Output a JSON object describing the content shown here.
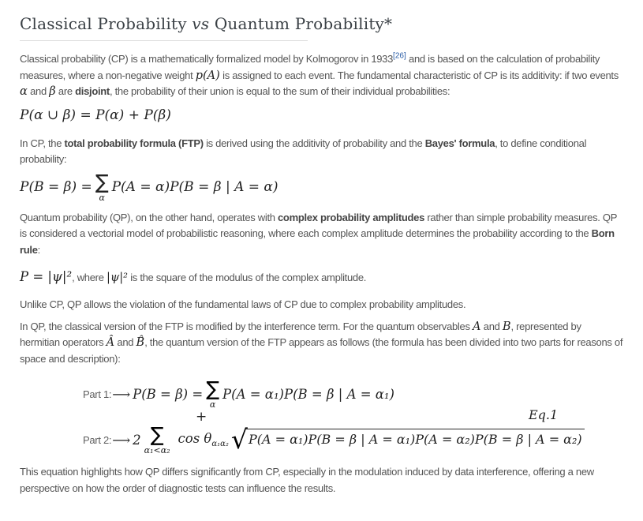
{
  "title": {
    "pre": "Classical Probability ",
    "vs": "vs",
    "post": " Quantum Probability*"
  },
  "paragraphs": {
    "p1": [
      {
        "t": "Classical probability (CP) is a mathematically formalized model by Kolmogorov in 1933",
        "s": "plain"
      },
      {
        "t": "[26]",
        "s": "suplink",
        "name": "citation-link-26",
        "i": true
      },
      {
        "t": " and is based on the calculation of probability measures, where a non-negative weight ",
        "s": "plain"
      },
      {
        "t": "p(A)",
        "s": "math"
      },
      {
        "t": " is assigned to each event. The fundamental characteristic of CP is its additivity: if two events ",
        "s": "plain"
      },
      {
        "t": "α",
        "s": "math"
      },
      {
        "t": " and ",
        "s": "plain"
      },
      {
        "t": "β",
        "s": "math"
      },
      {
        "t": " are ",
        "s": "plain"
      },
      {
        "t": "disjoint",
        "s": "bold"
      },
      {
        "t": ", the probability of their union is equal to the sum of their individual probabilities:",
        "s": "plain"
      }
    ],
    "p2": [
      {
        "t": "In CP, the ",
        "s": "plain"
      },
      {
        "t": "total probability formula (FTP)",
        "s": "bold"
      },
      {
        "t": " is derived using the additivity of probability and the ",
        "s": "plain"
      },
      {
        "t": "Bayes' formula",
        "s": "bold"
      },
      {
        "t": ", to define conditional probability:",
        "s": "plain"
      }
    ],
    "p3": [
      {
        "t": "Quantum probability (QP), on the other hand, operates with ",
        "s": "plain"
      },
      {
        "t": "complex probability amplitudes",
        "s": "bold"
      },
      {
        "t": " rather than simple probability measures. QP is considered a vectorial model of probabilistic reasoning, where each complex amplitude determines the probability according to the ",
        "s": "plain"
      },
      {
        "t": "Born rule",
        "s": "bold"
      },
      {
        "t": ":",
        "s": "plain"
      }
    ],
    "born": [
      {
        "t": "P = |ψ|²",
        "s": "math-lg"
      },
      {
        "t": ", where ",
        "s": "plain"
      },
      {
        "t": "|ψ|²",
        "s": "math"
      },
      {
        "t": " is the square of the modulus of the complex amplitude.",
        "s": "plain"
      }
    ],
    "p4": [
      {
        "t": "Unlike CP, QP allows the violation of the fundamental laws of CP due to complex probability amplitudes.",
        "s": "plain"
      }
    ],
    "p5": [
      {
        "t": "In QP, the classical version of the FTP is modified by the interference term. For the quantum observables ",
        "s": "plain"
      },
      {
        "t": "A",
        "s": "math"
      },
      {
        "t": " and ",
        "s": "plain"
      },
      {
        "t": "B",
        "s": "math"
      },
      {
        "t": ", represented by hermitian operators ",
        "s": "plain"
      },
      {
        "t": "Â",
        "s": "math"
      },
      {
        "t": " and ",
        "s": "plain"
      },
      {
        "t": "B̂",
        "s": "math"
      },
      {
        "t": ", the quantum version of the FTP appears as follows (the formula has been divided into two parts for reasons of space and description):",
        "s": "plain"
      }
    ],
    "p6": [
      {
        "t": "This equation highlights how QP differs significantly from CP, especially in the modulation induced by data interference, offering a new perspective on how the order of diagnostic tests can influence the results.",
        "s": "plain"
      }
    ]
  },
  "formulas": {
    "additivity": "P(α ∪ β) = P(α) + P(β)",
    "ftp": {
      "lhs": "P(B = β) = ",
      "sigma": "∑",
      "sigma_sub": "α",
      "rhs": "P(A = α)P(B = β | A = α)"
    }
  },
  "equation": {
    "part1": {
      "label": "Part 1:",
      "arrow": "⟶",
      "lhs": "P(B = β) = ",
      "sigma": "∑",
      "sigma_sub": "α",
      "rhs": "P(A = α₁)P(B = β | A = α₁)"
    },
    "plus": "+",
    "eq_label": "Eq.1",
    "part2": {
      "label": "Part 2:",
      "arrow": "⟶",
      "coef": "2",
      "sigma": "∑",
      "sigma_sub": "α₁<α₂",
      "cos_prefix": "cos θ",
      "cos_sub": "α₁α₂",
      "sqrt_sign": "√",
      "radicand": "P(A = α₁)P(B = β | A = α₁)P(A = α₂)P(B = β | A = α₂)"
    }
  },
  "colors": {
    "background": "#ffffff",
    "title_text": "#3a4045",
    "body_text": "#545454",
    "math_text": "#222222",
    "link_blue": "#2c5fa8",
    "divider": "#dddddd"
  }
}
